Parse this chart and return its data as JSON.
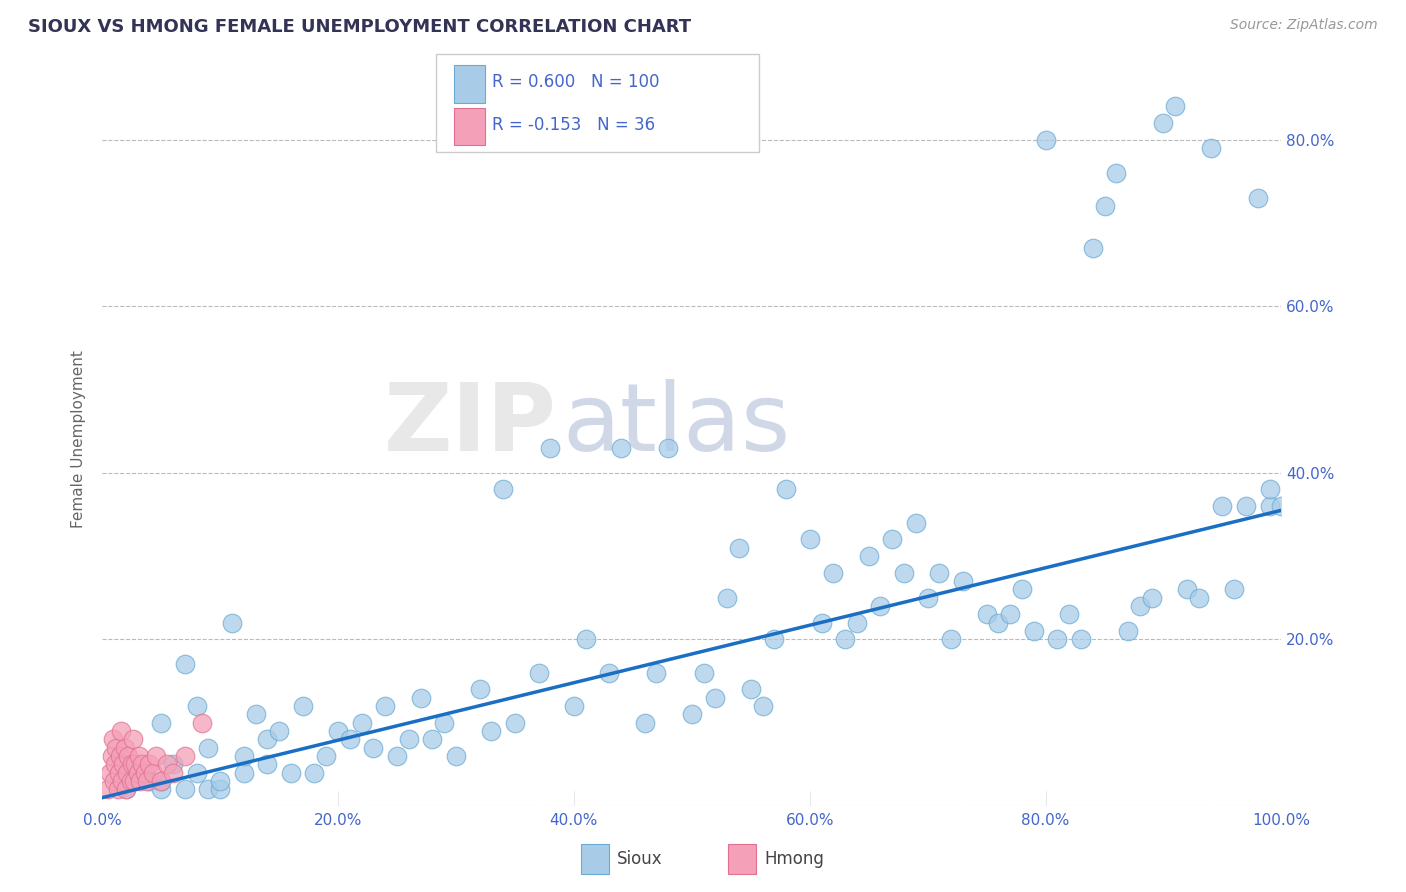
{
  "title": "SIOUX VS HMONG FEMALE UNEMPLOYMENT CORRELATION CHART",
  "source": "Source: ZipAtlas.com",
  "ylabel": "Female Unemployment",
  "legend_sioux_label": "Sioux",
  "legend_hmong_label": "Hmong",
  "sioux_R": 0.6,
  "sioux_N": 100,
  "hmong_R": -0.153,
  "hmong_N": 36,
  "sioux_color": "#a8cce8",
  "sioux_edge": "#6aaad4",
  "hmong_color": "#f4a0b8",
  "hmong_edge": "#e07090",
  "trend_color": "#1a6fc4",
  "background_color": "#ffffff",
  "grid_color": "#bbbbbb",
  "title_color": "#333355",
  "label_color": "#4466cc",
  "watermark_zip": "ZIP",
  "watermark_atlas": "atlas",
  "xlim": [
    0.0,
    1.0
  ],
  "ylim": [
    0.0,
    0.88
  ],
  "xtick_vals": [
    0.0,
    0.2,
    0.4,
    0.6,
    0.8,
    1.0
  ],
  "xtick_labels": [
    "0.0%",
    "20.0%",
    "40.0%",
    "60.0%",
    "80.0%",
    "100.0%"
  ],
  "ytick_vals": [
    0.0,
    0.2,
    0.4,
    0.6,
    0.8
  ],
  "ytick_labels_right": [
    "",
    "20.0%",
    "40.0%",
    "60.0%",
    "80.0%"
  ],
  "sioux_x": [
    0.02,
    0.03,
    0.04,
    0.05,
    0.05,
    0.05,
    0.06,
    0.07,
    0.07,
    0.08,
    0.08,
    0.09,
    0.09,
    0.1,
    0.1,
    0.11,
    0.12,
    0.12,
    0.13,
    0.14,
    0.14,
    0.15,
    0.16,
    0.17,
    0.18,
    0.19,
    0.2,
    0.21,
    0.22,
    0.23,
    0.24,
    0.25,
    0.26,
    0.27,
    0.28,
    0.29,
    0.3,
    0.32,
    0.33,
    0.34,
    0.35,
    0.37,
    0.38,
    0.4,
    0.41,
    0.43,
    0.44,
    0.46,
    0.47,
    0.48,
    0.5,
    0.51,
    0.52,
    0.53,
    0.54,
    0.55,
    0.56,
    0.57,
    0.58,
    0.6,
    0.61,
    0.62,
    0.63,
    0.64,
    0.65,
    0.66,
    0.67,
    0.68,
    0.69,
    0.7,
    0.71,
    0.72,
    0.73,
    0.75,
    0.76,
    0.77,
    0.78,
    0.79,
    0.8,
    0.81,
    0.82,
    0.83,
    0.84,
    0.85,
    0.86,
    0.87,
    0.88,
    0.89,
    0.9,
    0.91,
    0.92,
    0.93,
    0.94,
    0.95,
    0.96,
    0.97,
    0.98,
    0.99,
    0.99,
    1.0
  ],
  "sioux_y": [
    0.02,
    0.04,
    0.03,
    0.02,
    0.03,
    0.1,
    0.05,
    0.02,
    0.17,
    0.04,
    0.12,
    0.02,
    0.07,
    0.02,
    0.03,
    0.22,
    0.04,
    0.06,
    0.11,
    0.05,
    0.08,
    0.09,
    0.04,
    0.12,
    0.04,
    0.06,
    0.09,
    0.08,
    0.1,
    0.07,
    0.12,
    0.06,
    0.08,
    0.13,
    0.08,
    0.1,
    0.06,
    0.14,
    0.09,
    0.38,
    0.1,
    0.16,
    0.43,
    0.12,
    0.2,
    0.16,
    0.43,
    0.1,
    0.16,
    0.43,
    0.11,
    0.16,
    0.13,
    0.25,
    0.31,
    0.14,
    0.12,
    0.2,
    0.38,
    0.32,
    0.22,
    0.28,
    0.2,
    0.22,
    0.3,
    0.24,
    0.32,
    0.28,
    0.34,
    0.25,
    0.28,
    0.2,
    0.27,
    0.23,
    0.22,
    0.23,
    0.26,
    0.21,
    0.8,
    0.2,
    0.23,
    0.2,
    0.67,
    0.72,
    0.76,
    0.21,
    0.24,
    0.25,
    0.82,
    0.84,
    0.26,
    0.25,
    0.79,
    0.36,
    0.26,
    0.36,
    0.73,
    0.36,
    0.38,
    0.36
  ],
  "hmong_x": [
    0.005,
    0.007,
    0.008,
    0.009,
    0.01,
    0.011,
    0.012,
    0.013,
    0.014,
    0.015,
    0.016,
    0.017,
    0.018,
    0.019,
    0.02,
    0.021,
    0.022,
    0.024,
    0.025,
    0.026,
    0.027,
    0.028,
    0.03,
    0.031,
    0.032,
    0.034,
    0.036,
    0.038,
    0.04,
    0.043,
    0.046,
    0.05,
    0.055,
    0.06,
    0.07,
    0.085
  ],
  "hmong_y": [
    0.02,
    0.04,
    0.06,
    0.08,
    0.03,
    0.05,
    0.07,
    0.02,
    0.04,
    0.06,
    0.09,
    0.03,
    0.05,
    0.07,
    0.02,
    0.04,
    0.06,
    0.03,
    0.05,
    0.08,
    0.03,
    0.05,
    0.04,
    0.06,
    0.03,
    0.05,
    0.04,
    0.03,
    0.05,
    0.04,
    0.06,
    0.03,
    0.05,
    0.04,
    0.06,
    0.1
  ],
  "trend_x_start": 0.0,
  "trend_x_end": 1.0,
  "trend_y_start": 0.01,
  "trend_y_end": 0.355
}
